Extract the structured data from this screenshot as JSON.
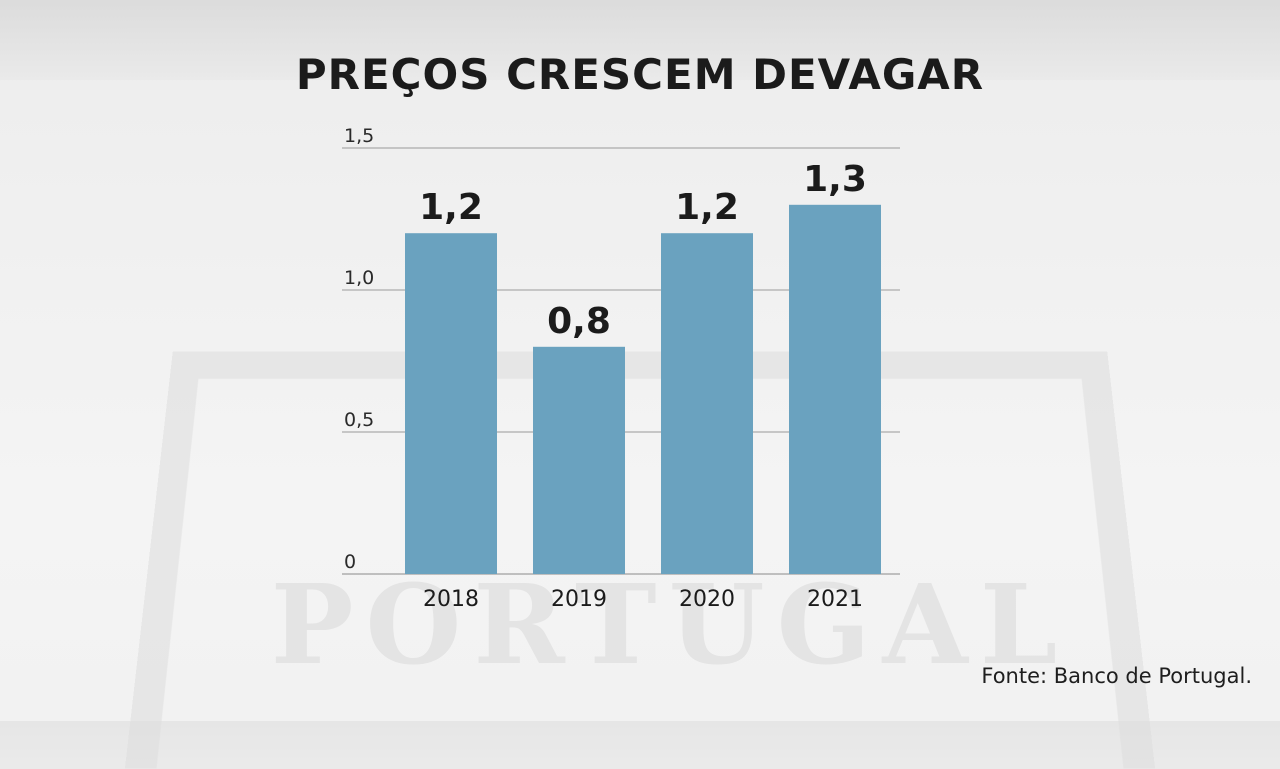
{
  "title": "PREÇOS CRESCEM DEVAGAR",
  "source": "Fonte: Banco de Portugal.",
  "colors": {
    "bar": "#6aa2bf",
    "grid": "#9a9a9a",
    "text": "#1b1b1b"
  },
  "chart_data": {
    "type": "bar",
    "title": "PREÇOS CRESCEM DEVAGAR",
    "categories": [
      "2018",
      "2019",
      "2020",
      "2021"
    ],
    "values": [
      1.2,
      0.8,
      1.2,
      1.3
    ],
    "value_labels": [
      "1,2",
      "0,8",
      "1,2",
      "1,3"
    ],
    "yticks": [
      0,
      0.5,
      1.0,
      1.5
    ],
    "ytick_labels": [
      "0",
      "0,5",
      "1,0",
      "1,5"
    ],
    "ylim": [
      0,
      1.5
    ],
    "xlabel": "",
    "ylabel": "",
    "grid": true,
    "legend": "none"
  }
}
